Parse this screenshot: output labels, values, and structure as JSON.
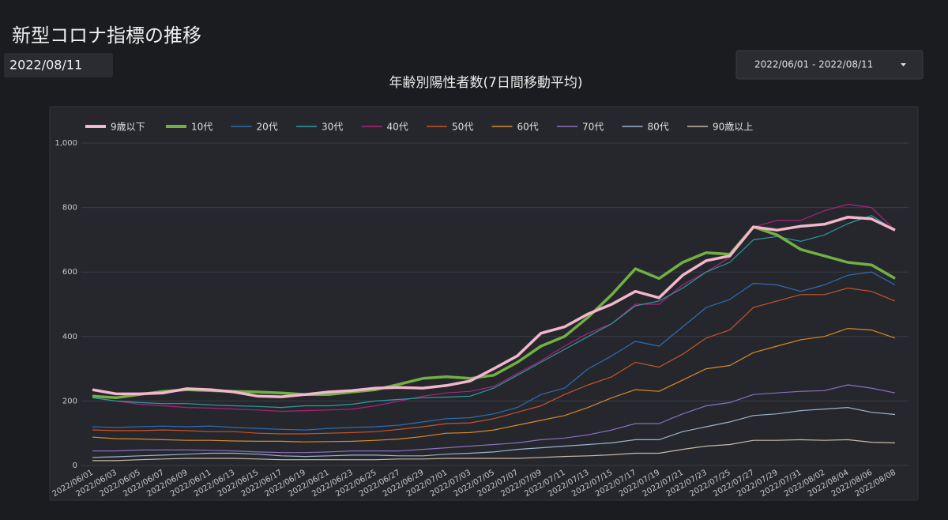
{
  "header": {
    "title": "新型コロナ指標の推移",
    "date": "2022/08/11",
    "date_range": "2022/06/01 - 2022/08/11"
  },
  "chart_data": {
    "type": "line",
    "title": "年齢別陽性者数(7日間移動平均)",
    "categories": [
      "2022/06/01",
      "2022/06/03",
      "2022/06/05",
      "2022/06/07",
      "2022/06/09",
      "2022/06/11",
      "2022/06/13",
      "2022/06/15",
      "2022/06/17",
      "2022/06/19",
      "2022/06/21",
      "2022/06/23",
      "2022/06/25",
      "2022/06/27",
      "2022/06/29",
      "2022/07/01",
      "2022/07/03",
      "2022/07/05",
      "2022/07/07",
      "2022/07/09",
      "2022/07/11",
      "2022/07/13",
      "2022/07/15",
      "2022/07/17",
      "2022/07/19",
      "2022/07/21",
      "2022/07/23",
      "2022/07/25",
      "2022/07/27",
      "2022/07/29",
      "2022/07/31",
      "2022/08/02",
      "2022/08/04",
      "2022/08/06",
      "2022/08/08"
    ],
    "ylim": [
      0,
      1000
    ],
    "yticks": [
      0,
      200,
      400,
      600,
      800,
      {
        "value": 1000,
        "label": "1,000"
      }
    ],
    "grid": true,
    "legend": "top",
    "series": [
      {
        "name": "9歳以下",
        "color": "#f4b6cc",
        "values": [
          235,
          222,
          222,
          225,
          238,
          235,
          228,
          215,
          213,
          220,
          228,
          232,
          240,
          242,
          240,
          248,
          262,
          300,
          340,
          410,
          430,
          470,
          500,
          540,
          520,
          590,
          635,
          650,
          740,
          730,
          742,
          748,
          770,
          765,
          730
        ]
      },
      {
        "name": "10代",
        "color": "#72b043",
        "values": [
          215,
          210,
          220,
          230,
          235,
          232,
          230,
          228,
          225,
          220,
          220,
          228,
          235,
          252,
          270,
          275,
          270,
          280,
          320,
          370,
          400,
          460,
          530,
          610,
          580,
          630,
          660,
          655,
          740,
          715,
          670,
          650,
          630,
          622,
          580
        ]
      },
      {
        "name": "20代",
        "color": "#2f6db5",
        "values": [
          120,
          118,
          120,
          122,
          120,
          122,
          118,
          115,
          112,
          110,
          115,
          118,
          120,
          125,
          135,
          145,
          148,
          160,
          180,
          220,
          240,
          300,
          340,
          385,
          370,
          430,
          490,
          515,
          565,
          560,
          540,
          560,
          590,
          600,
          560
        ]
      },
      {
        "name": "30代",
        "color": "#2a9d9f",
        "values": [
          210,
          200,
          195,
          192,
          192,
          188,
          185,
          183,
          180,
          185,
          185,
          190,
          200,
          205,
          210,
          212,
          215,
          240,
          280,
          320,
          360,
          400,
          440,
          495,
          510,
          550,
          600,
          630,
          700,
          710,
          695,
          715,
          750,
          775,
          730
        ]
      },
      {
        "name": "40代",
        "color": "#b0207c",
        "values": [
          210,
          200,
          190,
          185,
          180,
          178,
          175,
          172,
          168,
          170,
          172,
          175,
          185,
          200,
          215,
          225,
          230,
          245,
          285,
          325,
          370,
          410,
          440,
          500,
          500,
          560,
          600,
          645,
          740,
          760,
          760,
          790,
          810,
          800,
          730
        ]
      },
      {
        "name": "50代",
        "color": "#c8542a",
        "values": [
          110,
          108,
          108,
          110,
          108,
          105,
          105,
          100,
          98,
          98,
          100,
          102,
          105,
          112,
          120,
          130,
          132,
          145,
          165,
          185,
          220,
          250,
          275,
          320,
          305,
          345,
          395,
          420,
          490,
          510,
          530,
          530,
          550,
          540,
          510
        ]
      },
      {
        "name": "60代",
        "color": "#d58a2a",
        "values": [
          88,
          83,
          82,
          80,
          78,
          78,
          76,
          75,
          75,
          73,
          74,
          75,
          78,
          82,
          90,
          100,
          102,
          110,
          125,
          140,
          155,
          180,
          210,
          235,
          230,
          265,
          300,
          310,
          350,
          370,
          390,
          400,
          425,
          420,
          395
        ]
      },
      {
        "name": "70代",
        "color": "#8d6fc0",
        "values": [
          45,
          45,
          48,
          48,
          48,
          47,
          45,
          42,
          40,
          40,
          42,
          45,
          45,
          45,
          50,
          55,
          60,
          65,
          70,
          80,
          85,
          95,
          110,
          130,
          130,
          160,
          185,
          195,
          220,
          225,
          230,
          232,
          250,
          240,
          225
        ]
      },
      {
        "name": "80代",
        "color": "#9cb3c9",
        "values": [
          25,
          27,
          30,
          32,
          35,
          38,
          38,
          35,
          30,
          28,
          30,
          32,
          32,
          30,
          30,
          35,
          38,
          42,
          50,
          55,
          60,
          65,
          70,
          80,
          80,
          105,
          120,
          135,
          155,
          160,
          170,
          175,
          180,
          165,
          158
        ]
      },
      {
        "name": "90歳以上",
        "color": "#c9b8a8",
        "values": [
          15,
          15,
          18,
          20,
          22,
          22,
          22,
          20,
          18,
          18,
          18,
          18,
          18,
          20,
          20,
          22,
          22,
          22,
          22,
          25,
          28,
          30,
          33,
          38,
          38,
          50,
          60,
          65,
          78,
          78,
          80,
          78,
          80,
          72,
          70
        ]
      }
    ]
  }
}
